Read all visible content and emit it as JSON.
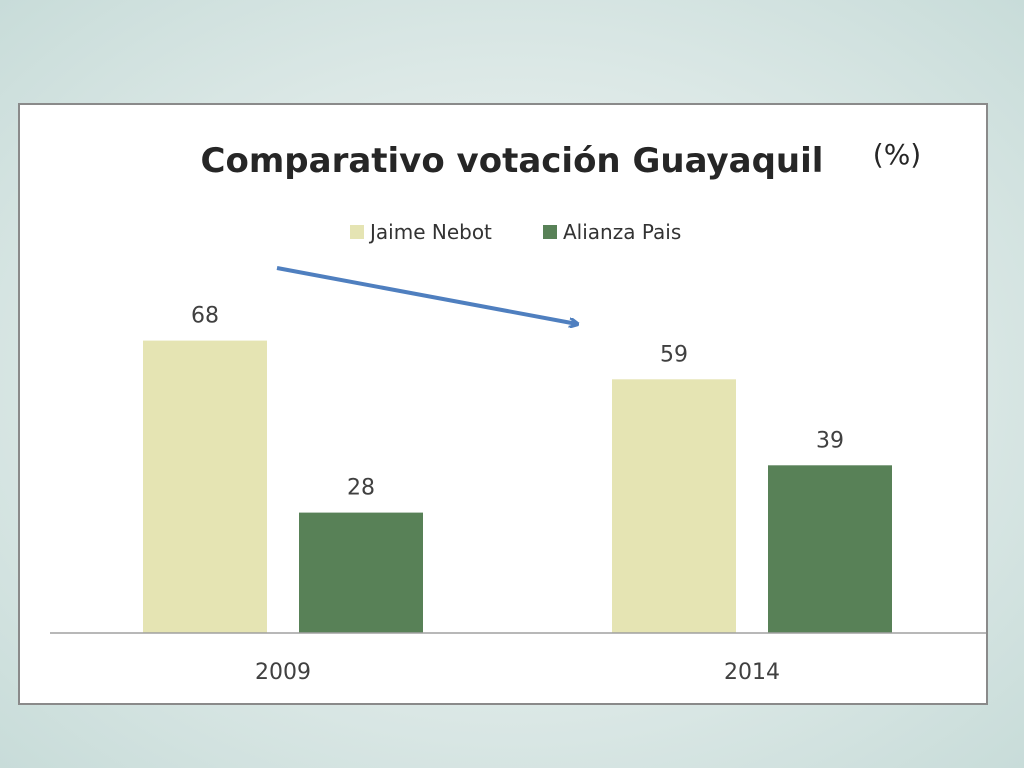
{
  "chart_data": {
    "type": "bar",
    "title": "Comparativo votación Guayaquil",
    "title_unit": "(%)",
    "categories": [
      "2009",
      "2014"
    ],
    "series": [
      {
        "name": "Jaime Nebot",
        "values": [
          68,
          59
        ],
        "color": "#e5e4b3"
      },
      {
        "name": "Alianza Pais",
        "values": [
          28,
          39
        ],
        "color": "#588157"
      }
    ],
    "data_labels": true,
    "legend": "top-center",
    "grid": false,
    "ylim": [
      0,
      100
    ],
    "arrow_color": "#4f7fbf"
  }
}
